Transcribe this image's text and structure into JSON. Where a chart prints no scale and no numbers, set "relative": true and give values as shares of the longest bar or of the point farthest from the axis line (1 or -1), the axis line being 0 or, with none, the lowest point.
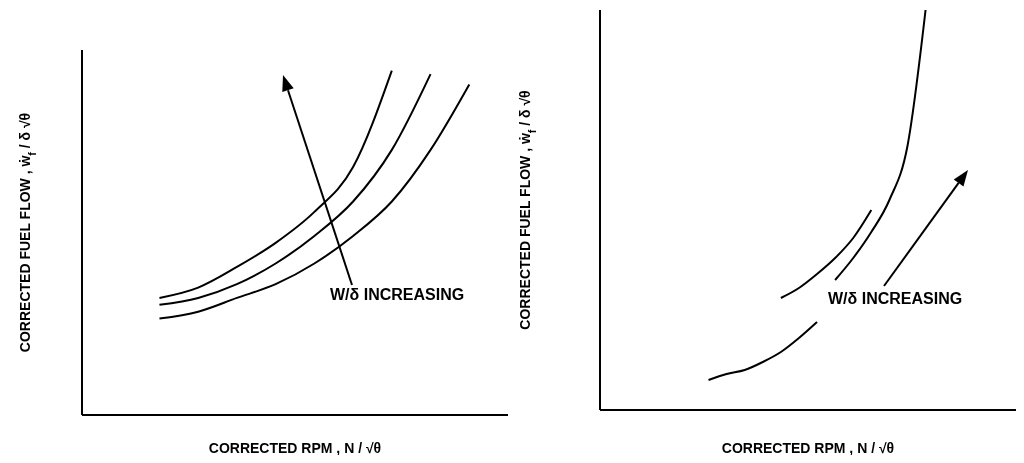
{
  "chart_data": [
    {
      "type": "line",
      "relative": true,
      "xlabel": "CORRECTED RPM , N / √θ",
      "ylabel": "CORRECTED FUEL FLOW , ẇ$_{f}$ / δ √θ",
      "annotations": [
        "W/δ INCREASING"
      ],
      "marker": "none",
      "line_style": "solid",
      "categories": [
        null,
        null,
        null,
        null,
        null,
        null,
        null,
        null,
        null,
        null,
        null,
        null
      ],
      "series": [
        {
          "color": "#000000",
          "values": [
            null,
            null,
            0.34,
            0.37,
            0.43,
            0.5,
            0.59,
            0.72,
            1.0,
            null,
            null,
            null
          ]
        },
        {
          "color": "#000000",
          "values": [
            null,
            null,
            0.32,
            0.34,
            0.38,
            0.44,
            0.52,
            0.62,
            0.77,
            0.99,
            null,
            null
          ]
        },
        {
          "color": "#000000",
          "values": [
            null,
            null,
            0.28,
            0.3,
            0.34,
            0.38,
            0.44,
            0.52,
            0.62,
            0.77,
            0.96,
            null
          ]
        }
      ]
    },
    {
      "type": "line",
      "relative": true,
      "xlabel": "CORRECTED RPM , N / √θ",
      "ylabel": "CORRECTED FUEL FLOW , ẇ$_{f}$ / δ √θ",
      "annotations": [
        "W/δ INCREASING"
      ],
      "marker": "none",
      "line_style": "solid",
      "categories": [
        null,
        null,
        null,
        null,
        null,
        null,
        null,
        null,
        null,
        null,
        null,
        null,
        null,
        null,
        null,
        null,
        null,
        null,
        null,
        null,
        null,
        null,
        null,
        null
      ],
      "series": [
        {
          "color": "#000000",
          "values": [
            null,
            null,
            null,
            null,
            null,
            null,
            0.075,
            0.09,
            0.1,
            0.12,
            0.145,
            0.18,
            0.22,
            null,
            null,
            null,
            null,
            null,
            null,
            null,
            null,
            null,
            null,
            null
          ]
        },
        {
          "color": "#000000",
          "values": [
            null,
            null,
            null,
            null,
            null,
            null,
            null,
            null,
            null,
            null,
            0.28,
            0.305,
            0.34,
            0.38,
            0.43,
            0.5,
            null,
            null,
            null,
            null,
            null,
            null,
            null,
            null
          ]
        },
        {
          "color": "#000000",
          "values": [
            null,
            null,
            null,
            null,
            null,
            null,
            null,
            null,
            null,
            null,
            null,
            null,
            null,
            0.325,
            0.38,
            0.445,
            0.525,
            0.66,
            1.0,
            null,
            null,
            null,
            null,
            null
          ]
        }
      ]
    }
  ]
}
